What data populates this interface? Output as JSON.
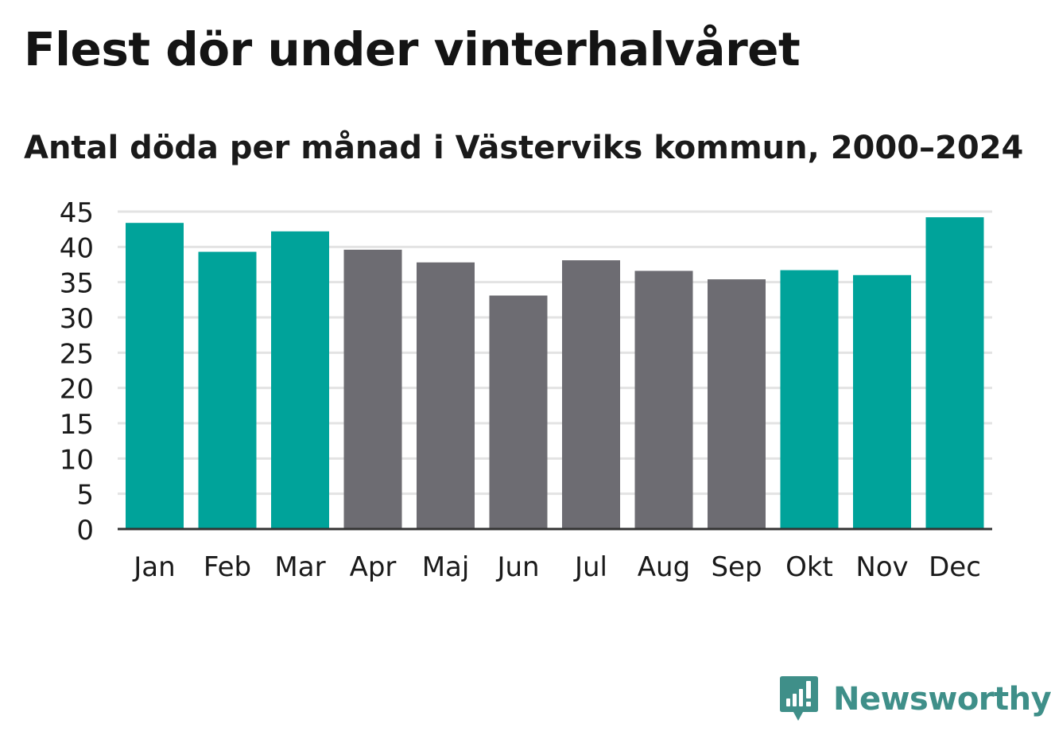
{
  "title": "Flest dör under vinterhalvåret",
  "subtitle": "Antal döda per månad i Västerviks kommun, 2000–2024",
  "brand": {
    "name": "Newsworthy",
    "color": "#3f8f89",
    "icon": "newsworthy-logo-icon"
  },
  "colors": {
    "winter": "#00a39a",
    "summer": "#6d6c72",
    "grid": "#e3e3e3",
    "axis": "#333333",
    "text": "#1a1a1a"
  },
  "chart_data": {
    "type": "bar",
    "title": "Flest dör under vinterhalvåret",
    "subtitle": "Antal döda per månad i Västerviks kommun, 2000–2024",
    "xlabel": "",
    "ylabel": "",
    "ylim": [
      0,
      45
    ],
    "yticks": [
      0,
      5,
      10,
      15,
      20,
      25,
      30,
      35,
      40,
      45
    ],
    "grid": true,
    "categories": [
      "Jan",
      "Feb",
      "Mar",
      "Apr",
      "Maj",
      "Jun",
      "Jul",
      "Aug",
      "Sep",
      "Okt",
      "Nov",
      "Dec"
    ],
    "values": [
      43.4,
      39.3,
      42.2,
      39.6,
      37.8,
      33.1,
      38.1,
      36.6,
      35.4,
      36.7,
      36.0,
      44.2
    ],
    "highlight": [
      true,
      true,
      true,
      false,
      false,
      false,
      false,
      false,
      false,
      true,
      true,
      true
    ]
  }
}
